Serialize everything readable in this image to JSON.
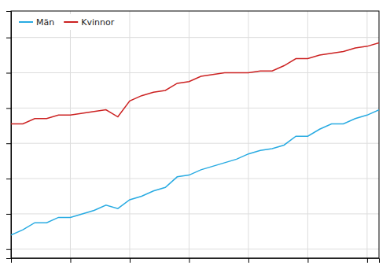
{
  "chart_data": {
    "type": "line",
    "x": [
      1980,
      1981,
      1982,
      1983,
      1984,
      1985,
      1986,
      1987,
      1988,
      1989,
      1990,
      1991,
      1992,
      1993,
      1994,
      1995,
      1996,
      1997,
      1998,
      1999,
      2000,
      2001,
      2002,
      2003,
      2004,
      2005,
      2006,
      2007,
      2008,
      2009,
      2010,
      2011
    ],
    "series": [
      {
        "name": "Män",
        "color": "#29ABE2",
        "values": [
          72.8,
          73.1,
          73.5,
          73.5,
          73.8,
          73.8,
          74.0,
          74.2,
          74.5,
          74.3,
          74.8,
          75.0,
          75.3,
          75.5,
          76.1,
          76.2,
          76.5,
          76.7,
          76.9,
          77.1,
          77.4,
          77.6,
          77.7,
          77.9,
          78.4,
          78.4,
          78.8,
          79.1,
          79.1,
          79.4,
          79.6,
          79.9
        ]
      },
      {
        "name": "Kvinnor",
        "color": "#CC2222",
        "values": [
          79.1,
          79.1,
          79.4,
          79.4,
          79.6,
          79.6,
          79.7,
          79.8,
          79.9,
          79.5,
          80.4,
          80.7,
          80.9,
          81.0,
          81.4,
          81.5,
          81.8,
          81.9,
          82.0,
          82.0,
          82.0,
          82.1,
          82.1,
          82.4,
          82.8,
          82.8,
          83.0,
          83.1,
          83.2,
          83.4,
          83.5,
          83.7
        ]
      }
    ],
    "xlim": [
      1980,
      2011
    ],
    "ylim": [
      71.5,
      85.5
    ],
    "xticks": [
      1980,
      1985,
      1990,
      1995,
      2000,
      2005,
      2010
    ],
    "yticks": [
      72,
      74,
      76,
      78,
      80,
      82,
      84
    ],
    "grid": true,
    "legend": "upper left",
    "tick_labels": false
  }
}
